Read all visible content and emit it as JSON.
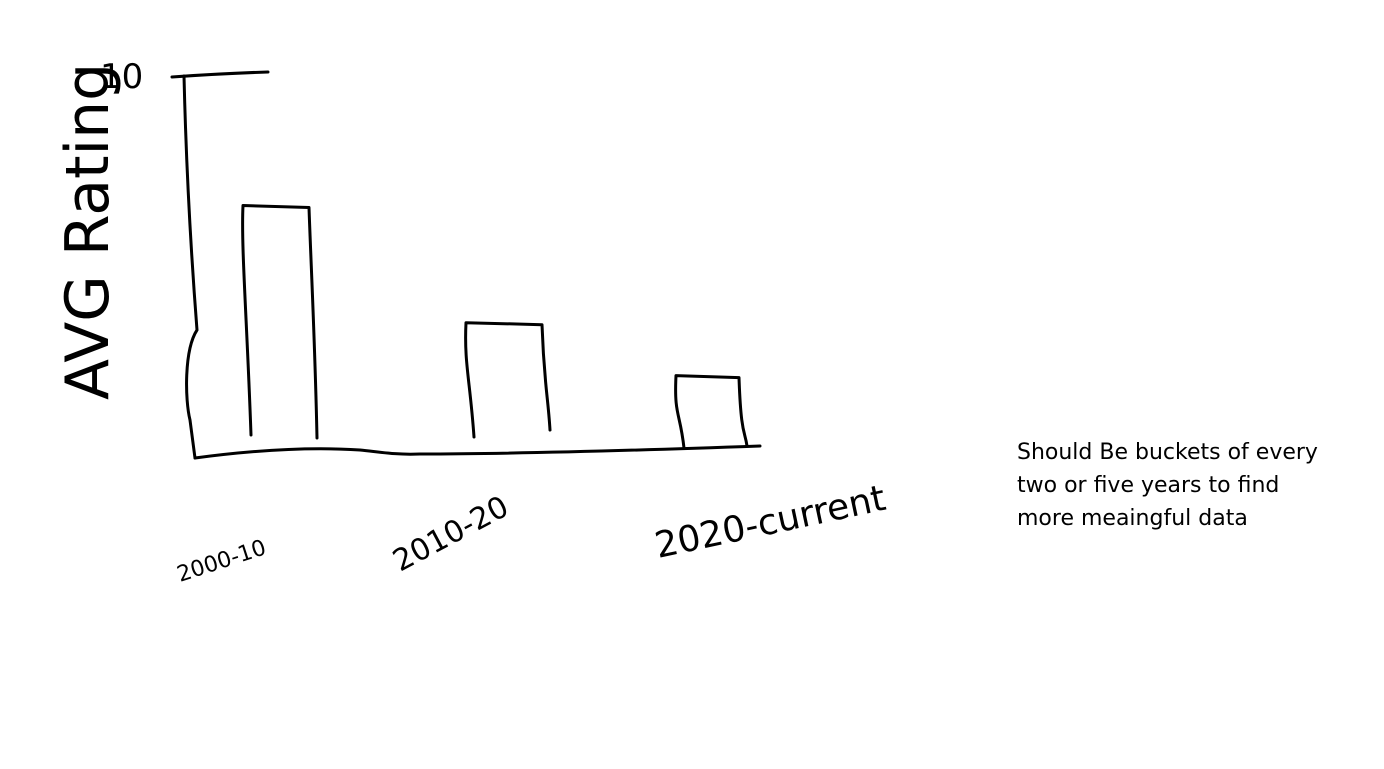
{
  "chart_data": {
    "type": "bar",
    "title": "",
    "xlabel": "",
    "ylabel": "AVG Rating",
    "ylim": [
      0,
      10
    ],
    "y_tick_labels": [
      "10"
    ],
    "categories": [
      "2000-10",
      "2010-20",
      "2020-current"
    ],
    "values": [
      6.6,
      3.5,
      2.1
    ],
    "grid": false
  },
  "note": {
    "text": "Should Be buckets of every two or five years to find more meaingful data"
  }
}
